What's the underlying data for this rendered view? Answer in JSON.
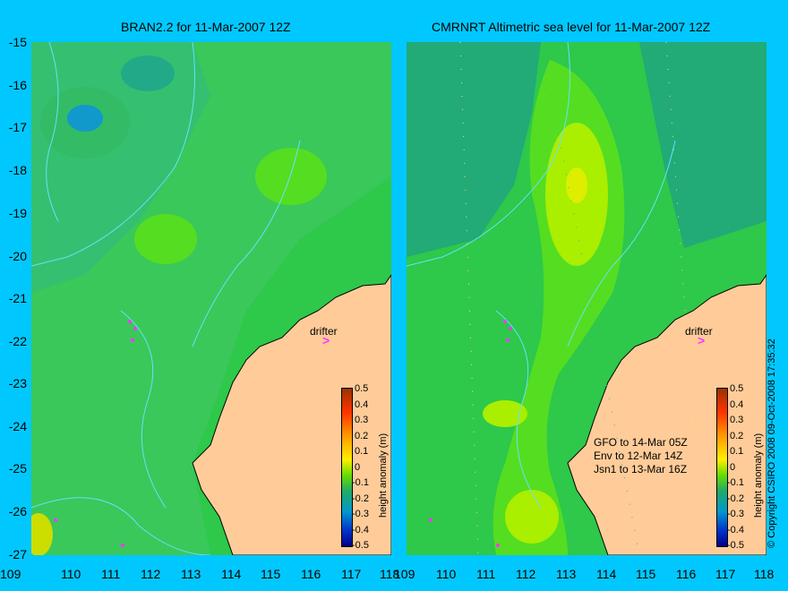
{
  "left_title": "BRAN2.2 for 11-Mar-2007 12Z",
  "right_title": "CMRNRT Altimetric sea level  for 11-Mar-2007 12Z",
  "y_ticks": [
    "-15",
    "-16",
    "-17",
    "-18",
    "-19",
    "-20",
    "-21",
    "-22",
    "-23",
    "-24",
    "-25",
    "-26",
    "-27"
  ],
  "x_ticks": [
    "109",
    "110",
    "111",
    "112",
    "113",
    "114",
    "115",
    "116",
    "117",
    "118"
  ],
  "drifter_label": "drifter",
  "drifter_marker": ">",
  "colorbar": {
    "label": "height anomaly (m)",
    "ticks": [
      "0.5",
      "0.4",
      "0.3",
      "0.2",
      "0.1",
      "0",
      "-0.1",
      "-0.2",
      "-0.3",
      "-0.4",
      "-0.5"
    ]
  },
  "passes": [
    "GFO to 14-Mar 05Z",
    "Env to 12-Mar 14Z",
    "Jsn1 to 13-Mar 16Z"
  ],
  "copyright": "© Copyright CSIRO 2008    09-Oct-2008 17:35:32",
  "colors": {
    "background": "#00c8ff",
    "ocean_base": "#2ec84a",
    "land": "#ffcc99",
    "coast_detail": "#c8a890",
    "contour": "#66e0ff",
    "drifter": "#ff33ff"
  }
}
